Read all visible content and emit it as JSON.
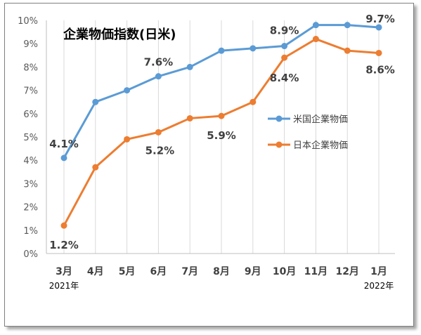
{
  "chart_data": {
    "type": "line",
    "title": "企業物価指数(日米)",
    "categories": [
      "3月",
      "4月",
      "5月",
      "6月",
      "7月",
      "8月",
      "9月",
      "10月",
      "11月",
      "12月",
      "1月"
    ],
    "x_sublabels": [
      {
        "category_index": 0,
        "text": "2021年"
      },
      {
        "category_index": 10,
        "text": "2022年"
      }
    ],
    "ylim": [
      0,
      10
    ],
    "y_ticks": [
      "0%",
      "1%",
      "2%",
      "3%",
      "4%",
      "5%",
      "6%",
      "7%",
      "8%",
      "9%",
      "10%"
    ],
    "grid": "vertical",
    "legend_position": "right",
    "series": [
      {
        "name": "米国企業物価",
        "color": "#5b9bd5",
        "values": [
          4.1,
          6.5,
          7.0,
          7.6,
          8.0,
          8.7,
          8.8,
          8.9,
          9.8,
          9.8,
          9.7
        ]
      },
      {
        "name": "日本企業物価",
        "color": "#ed7d31",
        "values": [
          1.2,
          3.7,
          4.9,
          5.2,
          5.8,
          5.9,
          6.5,
          8.4,
          9.2,
          8.7,
          8.6
        ]
      }
    ],
    "data_labels": [
      {
        "series": 0,
        "index": 0,
        "text": "4.1%"
      },
      {
        "series": 0,
        "index": 3,
        "text": "7.6%"
      },
      {
        "series": 0,
        "index": 7,
        "text": "8.9%"
      },
      {
        "series": 0,
        "index": 10,
        "text": "9.7%"
      },
      {
        "series": 1,
        "index": 0,
        "text": "1.2%"
      },
      {
        "series": 1,
        "index": 3,
        "text": "5.2%"
      },
      {
        "series": 1,
        "index": 5,
        "text": "5.9%"
      },
      {
        "series": 1,
        "index": 7,
        "text": "8.4%"
      },
      {
        "series": 1,
        "index": 10,
        "text": "8.6%"
      }
    ]
  }
}
